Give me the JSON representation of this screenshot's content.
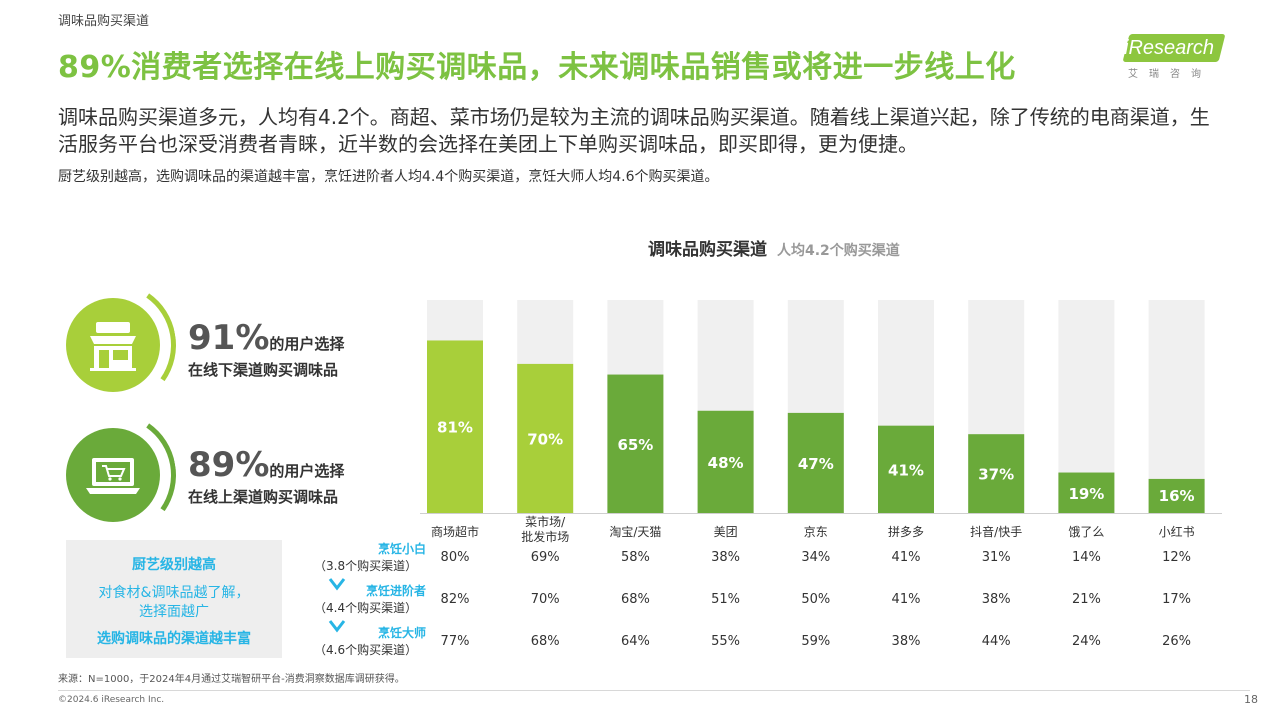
{
  "header": {
    "crumb": "调味品购买渠道",
    "headline": "89%消费者选择在线上购买调味品，未来调味品销售或将进一步线上化",
    "lead": "调味品购买渠道多元，人均有4.2个。商超、菜市场仍是较为主流的调味品购买渠道。随着线上渠道兴起，除了传统的电商渠道，生活服务平台也深受消费者青睐，近半数的会选择在美团上下单购买调味品，即买即得，更为便捷。",
    "note": "厨艺级别越高，选购调味品的渠道越丰富，烹饪进阶者人均4.4个购买渠道，烹饪大师人均4.6个购买渠道。"
  },
  "logo": {
    "name": "iResearch",
    "sub": "艾瑞咨询"
  },
  "stats": [
    {
      "pct": "91%",
      "tail": "的用户选择",
      "line2": "在线下渠道购买调味品",
      "icon": "shop-icon",
      "color": "#a8cf3a"
    },
    {
      "pct": "89%",
      "tail": "的用户选择",
      "line2": "在线上渠道购买调味品",
      "icon": "laptop-cart-icon",
      "color": "#6aaa3a"
    }
  ],
  "panel": {
    "line1": "厨艺级别越高",
    "line2": "对食材&调味品越了解，",
    "line3": "选择面越广",
    "line4": "选购调味品的渠道越丰富"
  },
  "rows": [
    {
      "name": "烹饪小白",
      "sub": "（3.8个购买渠道）",
      "values": [
        "80%",
        "69%",
        "58%",
        "38%",
        "34%",
        "41%",
        "31%",
        "14%",
        "12%"
      ]
    },
    {
      "name": "烹饪进阶者",
      "sub": "（4.4个购买渠道）",
      "values": [
        "82%",
        "70%",
        "68%",
        "51%",
        "50%",
        "41%",
        "38%",
        "21%",
        "17%"
      ]
    },
    {
      "name": "烹饪大师",
      "sub": "（4.6个购买渠道）",
      "values": [
        "77%",
        "68%",
        "64%",
        "55%",
        "59%",
        "38%",
        "44%",
        "24%",
        "26%"
      ]
    }
  ],
  "colors": {
    "accent": "#7dc242",
    "lime": "#a8cf3a",
    "green": "#6aaa3a",
    "track": "#f0f0f0",
    "blue": "#27b5e5"
  },
  "chart_data": {
    "type": "bar",
    "title": "调味品购买渠道",
    "subtitle": "人均4.2个购买渠道",
    "categories": [
      "商场超市",
      "菜市场/\n批发市场",
      "淘宝/天猫",
      "美团",
      "京东",
      "拼多多",
      "抖音/快手",
      "饿了么",
      "小红书"
    ],
    "values": [
      81,
      70,
      65,
      48,
      47,
      41,
      37,
      19,
      16
    ],
    "value_labels": [
      "81%",
      "70%",
      "65%",
      "48%",
      "47%",
      "41%",
      "37%",
      "19%",
      "16%"
    ],
    "bar_colors": [
      "#a8cf3a",
      "#a8cf3a",
      "#6aaa3a",
      "#6aaa3a",
      "#6aaa3a",
      "#6aaa3a",
      "#6aaa3a",
      "#6aaa3a",
      "#6aaa3a"
    ],
    "ylim": [
      0,
      100
    ],
    "xlabel": "",
    "ylabel": "",
    "grid": false,
    "legend": "none"
  },
  "footer": {
    "source": "来源：N=1000，于2024年4月通过艾瑞智研平台-消费洞察数据库调研获得。",
    "copyright": "©2024.6 iResearch Inc.",
    "page": "18"
  }
}
